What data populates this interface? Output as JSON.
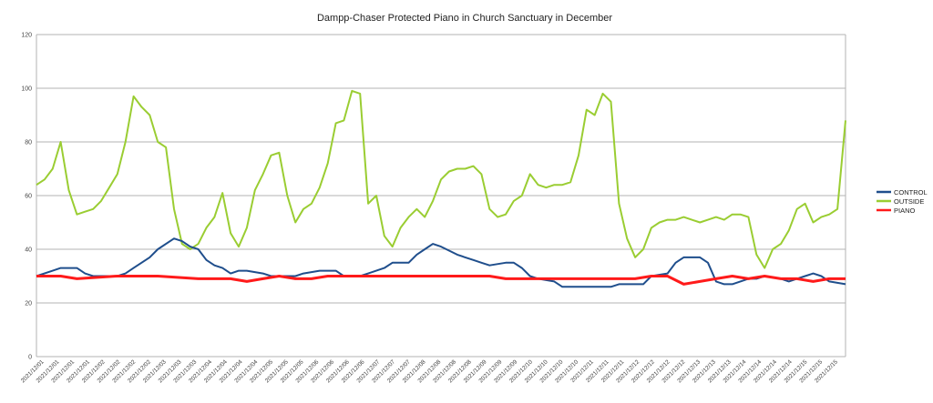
{
  "chart_data": {
    "type": "line",
    "title": "Dampp-Chaser Protected Piano in Church Sanctuary in December",
    "xlabel": "",
    "ylabel": "",
    "ylim": [
      0,
      120
    ],
    "yticks": [
      0,
      20,
      40,
      60,
      80,
      100,
      120
    ],
    "grid": true,
    "legend_position": "right",
    "x_tick_labels": [
      "2021/12/01",
      "2021/12/01",
      "2021/12/01",
      "2021/12/01",
      "2021/12/02",
      "2021/12/02",
      "2021/12/02",
      "2021/12/02",
      "2021/12/03",
      "2021/12/03",
      "2021/12/03",
      "2021/12/04",
      "2021/12/04",
      "2021/12/04",
      "2021/12/04",
      "2021/12/05",
      "2021/12/05",
      "2021/12/05",
      "2021/12/06",
      "2021/12/06",
      "2021/12/06",
      "2021/12/06",
      "2021/12/07",
      "2021/12/07",
      "2021/12/07",
      "2021/12/08",
      "2021/12/08",
      "2021/12/08",
      "2021/12/08",
      "2021/12/09",
      "2021/12/09",
      "2021/12/09",
      "2021/12/10",
      "2021/12/10",
      "2021/12/10",
      "2021/12/10",
      "2021/12/11",
      "2021/12/11",
      "2021/12/11",
      "2021/12/12",
      "2021/12/12",
      "2021/12/12",
      "2021/12/12",
      "2021/12/13",
      "2021/12/13",
      "2021/12/13",
      "2021/12/14",
      "2021/12/14",
      "2021/12/14",
      "2021/12/14",
      "2021/12/15",
      "2021/12/15",
      "2021/12/15"
    ],
    "series": [
      {
        "name": "CONTROL",
        "color": "#1f4e8c",
        "x": [
          0,
          2,
          3,
          5,
          6,
          7,
          8,
          9,
          10,
          11,
          12,
          14,
          15,
          17,
          18,
          19,
          20,
          21,
          22,
          23,
          24,
          25,
          26,
          28,
          29,
          30,
          32,
          33,
          35,
          37,
          38,
          40,
          41,
          43,
          44,
          45,
          46,
          47,
          48,
          49,
          50,
          52,
          53,
          54,
          55,
          56,
          58,
          59,
          60,
          61,
          62,
          64,
          65,
          67,
          68,
          69,
          70,
          71,
          72,
          73,
          75,
          76,
          78,
          79,
          80,
          82,
          83,
          84,
          85,
          86,
          87,
          88,
          89,
          90,
          92,
          93,
          94,
          95,
          96,
          97,
          98,
          100
        ],
        "values": [
          30,
          32,
          33,
          33,
          31,
          30,
          30,
          30,
          30,
          31,
          33,
          37,
          40,
          44,
          43,
          41,
          40,
          36,
          34,
          33,
          31,
          32,
          32,
          31,
          30,
          30,
          30,
          31,
          32,
          32,
          30,
          30,
          31,
          33,
          35,
          35,
          35,
          38,
          40,
          42,
          41,
          38,
          37,
          36,
          35,
          34,
          35,
          35,
          33,
          30,
          29,
          28,
          26,
          26,
          26,
          26,
          26,
          26,
          27,
          27,
          27,
          30,
          31,
          35,
          37,
          37,
          35,
          28,
          27,
          27,
          28,
          29,
          29,
          30,
          29,
          28,
          29,
          30,
          31,
          30,
          28,
          27
        ]
      },
      {
        "name": "OUTSIDE",
        "color": "#9acd32",
        "x": [
          0,
          1,
          2,
          3,
          4,
          5,
          6,
          7,
          8,
          9,
          10,
          11,
          12,
          13,
          14,
          15,
          16,
          17,
          18,
          19,
          20,
          21,
          22,
          23,
          24,
          25,
          26,
          27,
          28,
          29,
          30,
          31,
          32,
          33,
          34,
          35,
          36,
          37,
          38,
          39,
          40,
          41,
          42,
          43,
          44,
          45,
          46,
          47,
          48,
          49,
          50,
          51,
          52,
          53,
          54,
          55,
          56,
          57,
          58,
          59,
          60,
          61,
          62,
          63,
          64,
          65,
          66,
          67,
          68,
          69,
          70,
          71,
          72,
          73,
          74,
          75,
          76,
          77,
          78,
          79,
          80,
          81,
          82,
          83,
          84,
          85,
          86,
          87,
          88,
          89,
          90,
          91,
          92,
          93,
          94,
          95,
          96,
          97,
          98,
          99,
          100
        ],
        "values": [
          64,
          66,
          70,
          80,
          62,
          53,
          54,
          55,
          58,
          63,
          68,
          80,
          97,
          93,
          90,
          80,
          78,
          55,
          42,
          40,
          42,
          48,
          52,
          61,
          46,
          41,
          48,
          62,
          68,
          75,
          76,
          60,
          50,
          55,
          57,
          63,
          72,
          87,
          88,
          99,
          98,
          57,
          60,
          45,
          41,
          48,
          52,
          55,
          52,
          58,
          66,
          69,
          70,
          70,
          71,
          68,
          55,
          52,
          53,
          58,
          60,
          68,
          64,
          63,
          64,
          64,
          65,
          75,
          92,
          90,
          98,
          95,
          57,
          44,
          37,
          40,
          48,
          50,
          51,
          51,
          52,
          51,
          50,
          51,
          52,
          51,
          53,
          53,
          52,
          38,
          33,
          40,
          42,
          47,
          55,
          57,
          50,
          52,
          53,
          55,
          88
        ]
      },
      {
        "name": "PIANO",
        "color": "#ff1a1a",
        "x": [
          0,
          3,
          5,
          10,
          15,
          20,
          24,
          26,
          28,
          30,
          32,
          34,
          36,
          38,
          40,
          42,
          44,
          46,
          48,
          50,
          52,
          54,
          56,
          58,
          60,
          62,
          64,
          66,
          68,
          70,
          72,
          74,
          76,
          78,
          80,
          82,
          84,
          86,
          88,
          90,
          92,
          94,
          96,
          98,
          100
        ],
        "values": [
          30,
          30,
          29,
          30,
          30,
          29,
          29,
          28,
          29,
          30,
          29,
          29,
          30,
          30,
          30,
          30,
          30,
          30,
          30,
          30,
          30,
          30,
          30,
          29,
          29,
          29,
          29,
          29,
          29,
          29,
          29,
          29,
          30,
          30,
          27,
          28,
          29,
          30,
          29,
          30,
          29,
          29,
          28,
          29,
          29
        ]
      }
    ]
  }
}
